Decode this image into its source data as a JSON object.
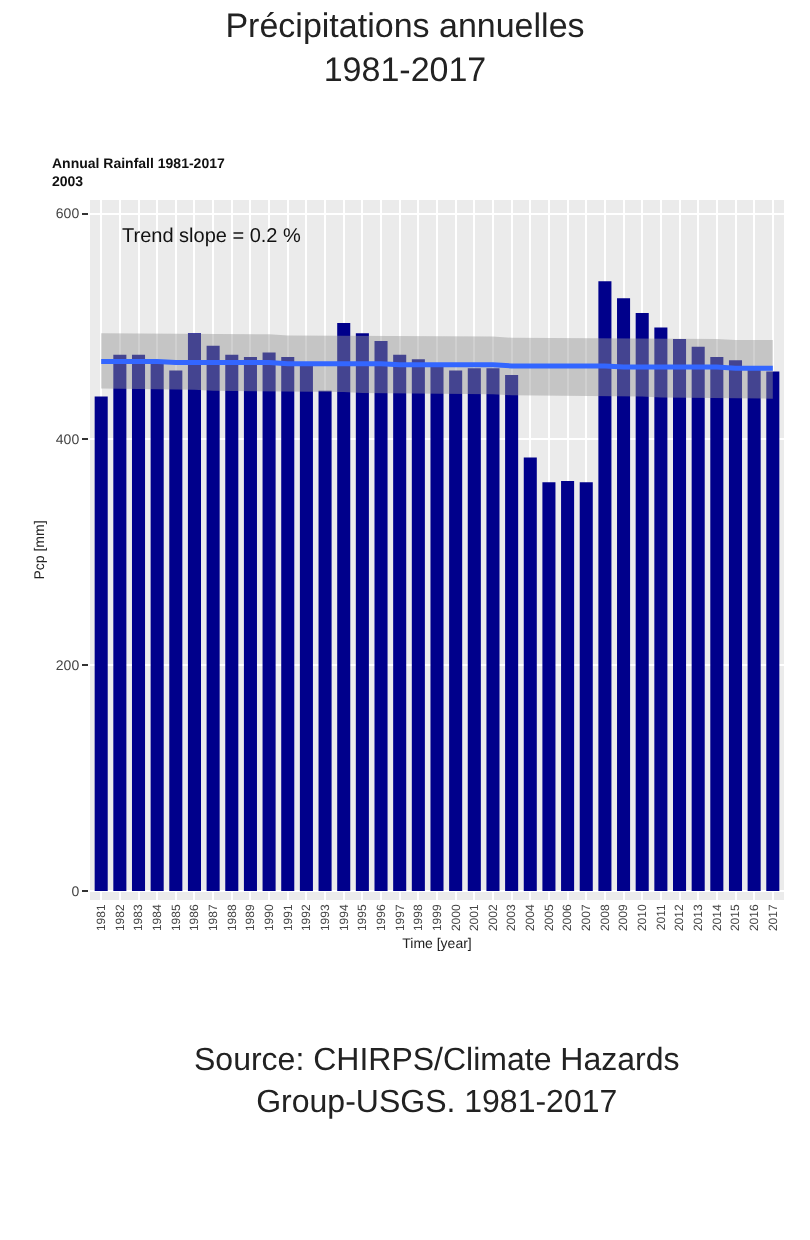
{
  "chart_data": {
    "type": "bar",
    "title": "Précipitations annuelles\n1981-2017",
    "subtitle": "Annual Rainfall 1981-2017\n2003",
    "xlabel": "Time [year]",
    "ylabel": "Pcp [mm]",
    "categories": [
      "1981",
      "1982",
      "1983",
      "1984",
      "1985",
      "1986",
      "1987",
      "1988",
      "1989",
      "1990",
      "1991",
      "1992",
      "1993",
      "1994",
      "1995",
      "1996",
      "1997",
      "1998",
      "1999",
      "2000",
      "2001",
      "2002",
      "2003",
      "2004",
      "2005",
      "2006",
      "2007",
      "2008",
      "2009",
      "2010",
      "2011",
      "2012",
      "2013",
      "2014",
      "2015",
      "2016",
      "2017"
    ],
    "series": [
      {
        "color": "#00008b",
        "values": [
          438,
          475,
          475,
          467,
          461,
          494,
          483,
          475,
          473,
          477,
          473,
          467,
          443,
          503,
          494,
          487,
          475,
          471,
          465,
          461,
          463,
          463,
          457,
          384,
          362,
          363,
          362,
          540,
          525,
          512,
          499,
          489,
          482,
          473,
          470,
          463,
          460
        ]
      },
      {
        "type": "line",
        "color": "#3366ff",
        "values": [
          469,
          469,
          469,
          469,
          468,
          468,
          468,
          468,
          468,
          468,
          467,
          467,
          467,
          467,
          467,
          467,
          466,
          466,
          466,
          466,
          466,
          466,
          465,
          465,
          465,
          465,
          465,
          465,
          464,
          464,
          464,
          464,
          464,
          464,
          463,
          463,
          463
        ],
        "lower": [
          445,
          445,
          444,
          444,
          444,
          444,
          443,
          443,
          443,
          443,
          442,
          442,
          442,
          442,
          441,
          441,
          441,
          441,
          440,
          440,
          440,
          440,
          439,
          439,
          439,
          439,
          438,
          438,
          438,
          438,
          437,
          437,
          437,
          437,
          436,
          436,
          436
        ],
        "upper": [
          494,
          494,
          494,
          494,
          493,
          493,
          493,
          493,
          493,
          493,
          492,
          492,
          492,
          492,
          492,
          492,
          491,
          491,
          491,
          491,
          491,
          491,
          490,
          490,
          490,
          490,
          490,
          490,
          489,
          489,
          489,
          489,
          489,
          489,
          488,
          488,
          488
        ]
      }
    ],
    "ylim": [
      -8,
      612
    ],
    "yticks": [
      0,
      200,
      400,
      600
    ],
    "grid": true,
    "annotations": [
      "Trend slope = 0.2 %",
      "Source: CHIRPS/Climate Hazards\nGroup-USGS. 1981-2017"
    ]
  }
}
